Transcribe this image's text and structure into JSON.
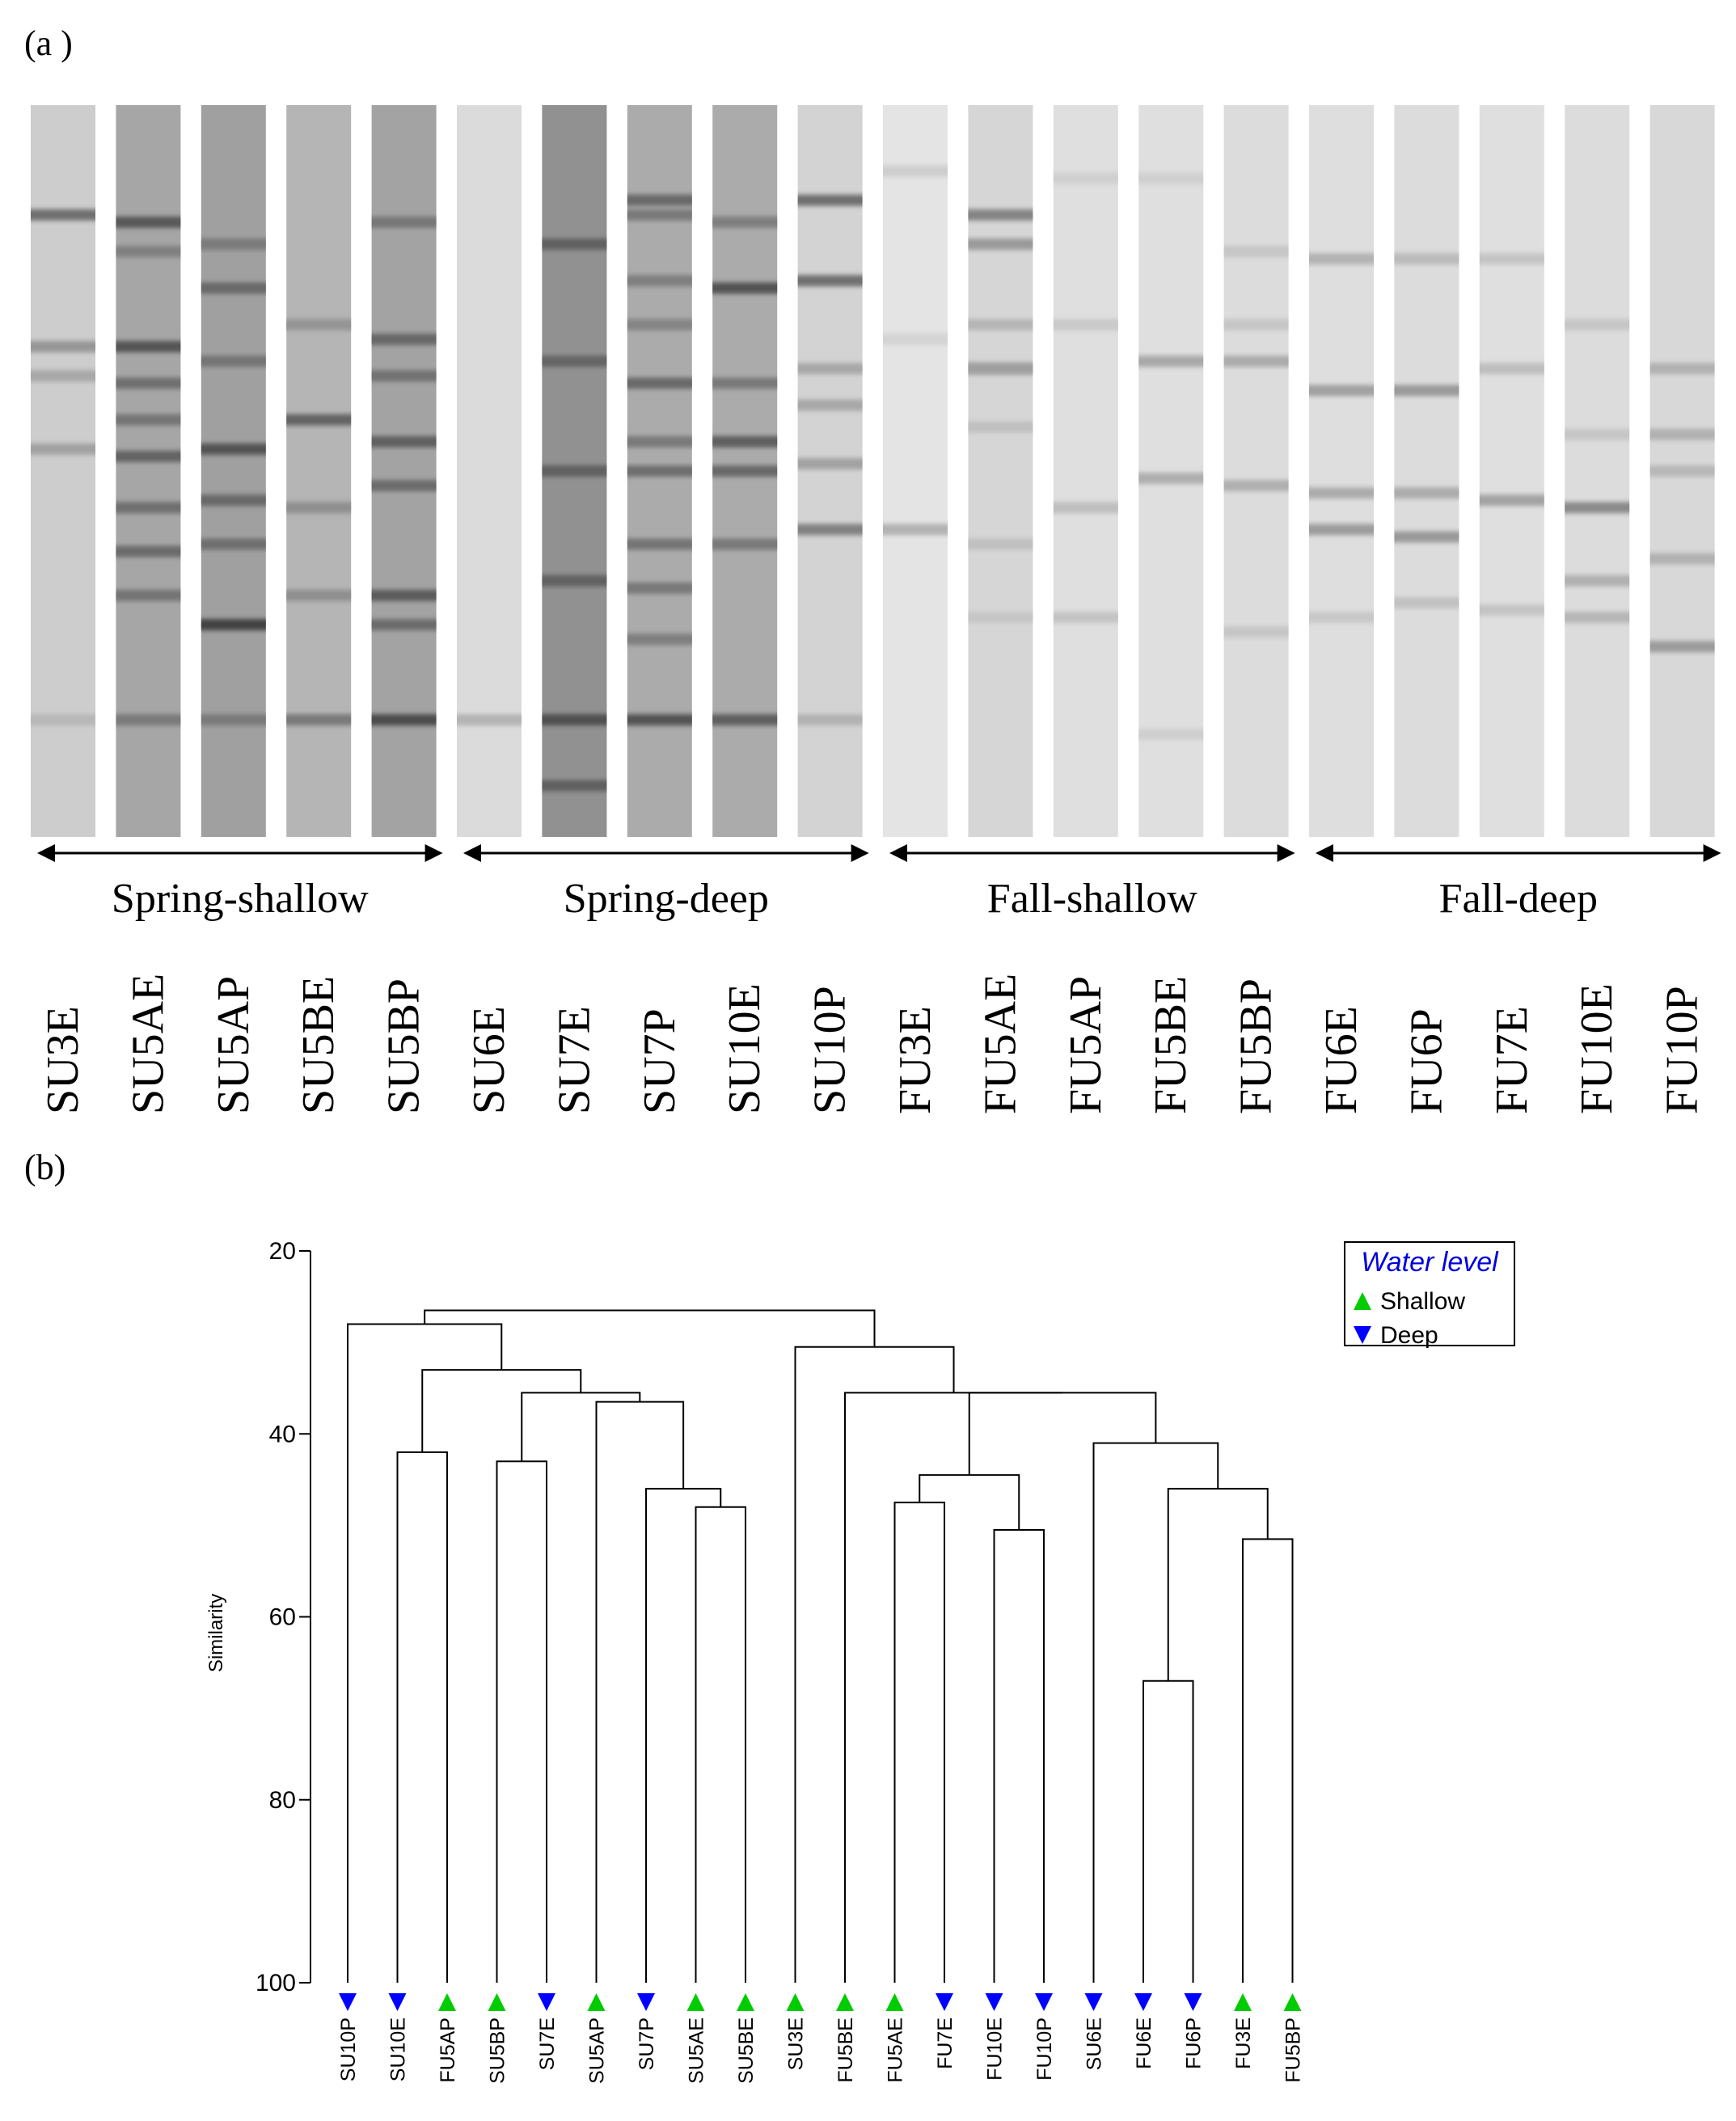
{
  "panel_a": {
    "label": "(a )",
    "lanes": [
      {
        "name": "SU3E",
        "tone": 0.22,
        "bands": [
          {
            "pos": 0.15,
            "i": 0.85
          },
          {
            "pos": 0.33,
            "i": 0.5
          },
          {
            "pos": 0.37,
            "i": 0.35
          },
          {
            "pos": 0.47,
            "i": 0.4
          },
          {
            "pos": 0.84,
            "i": 0.2
          }
        ]
      },
      {
        "name": "SU5AE",
        "tone": 0.48,
        "bands": [
          {
            "pos": 0.16,
            "i": 0.7
          },
          {
            "pos": 0.2,
            "i": 0.35
          },
          {
            "pos": 0.33,
            "i": 0.75
          },
          {
            "pos": 0.38,
            "i": 0.5
          },
          {
            "pos": 0.43,
            "i": 0.45
          },
          {
            "pos": 0.48,
            "i": 0.6
          },
          {
            "pos": 0.55,
            "i": 0.5
          },
          {
            "pos": 0.61,
            "i": 0.55
          },
          {
            "pos": 0.67,
            "i": 0.45
          },
          {
            "pos": 0.84,
            "i": 0.4
          }
        ]
      },
      {
        "name": "SU5AP",
        "tone": 0.52,
        "bands": [
          {
            "pos": 0.19,
            "i": 0.35
          },
          {
            "pos": 0.25,
            "i": 0.5
          },
          {
            "pos": 0.35,
            "i": 0.4
          },
          {
            "pos": 0.47,
            "i": 0.7
          },
          {
            "pos": 0.54,
            "i": 0.5
          },
          {
            "pos": 0.6,
            "i": 0.45
          },
          {
            "pos": 0.71,
            "i": 0.85
          },
          {
            "pos": 0.84,
            "i": 0.35
          }
        ]
      },
      {
        "name": "SU5BE",
        "tone": 0.38,
        "bands": [
          {
            "pos": 0.3,
            "i": 0.3
          },
          {
            "pos": 0.43,
            "i": 0.75
          },
          {
            "pos": 0.55,
            "i": 0.35
          },
          {
            "pos": 0.67,
            "i": 0.35
          },
          {
            "pos": 0.84,
            "i": 0.55
          }
        ]
      },
      {
        "name": "SU5BP",
        "tone": 0.5,
        "bands": [
          {
            "pos": 0.16,
            "i": 0.4
          },
          {
            "pos": 0.32,
            "i": 0.55
          },
          {
            "pos": 0.37,
            "i": 0.45
          },
          {
            "pos": 0.46,
            "i": 0.6
          },
          {
            "pos": 0.52,
            "i": 0.5
          },
          {
            "pos": 0.67,
            "i": 0.65
          },
          {
            "pos": 0.71,
            "i": 0.5
          },
          {
            "pos": 0.84,
            "i": 0.8
          }
        ]
      },
      {
        "name": "SU6E",
        "tone": 0.13,
        "bands": [
          {
            "pos": 0.84,
            "i": 0.35
          }
        ]
      },
      {
        "name": "SU7E",
        "tone": 0.62,
        "bands": [
          {
            "pos": 0.19,
            "i": 0.45
          },
          {
            "pos": 0.35,
            "i": 0.4
          },
          {
            "pos": 0.5,
            "i": 0.45
          },
          {
            "pos": 0.65,
            "i": 0.45
          },
          {
            "pos": 0.84,
            "i": 0.6
          },
          {
            "pos": 0.93,
            "i": 0.45
          }
        ]
      },
      {
        "name": "SU7P",
        "tone": 0.45,
        "bands": [
          {
            "pos": 0.13,
            "i": 0.6
          },
          {
            "pos": 0.15,
            "i": 0.45
          },
          {
            "pos": 0.24,
            "i": 0.4
          },
          {
            "pos": 0.3,
            "i": 0.35
          },
          {
            "pos": 0.38,
            "i": 0.6
          },
          {
            "pos": 0.46,
            "i": 0.45
          },
          {
            "pos": 0.5,
            "i": 0.55
          },
          {
            "pos": 0.6,
            "i": 0.5
          },
          {
            "pos": 0.66,
            "i": 0.45
          },
          {
            "pos": 0.73,
            "i": 0.4
          },
          {
            "pos": 0.84,
            "i": 0.8
          }
        ]
      },
      {
        "name": "SU10E",
        "tone": 0.45,
        "bands": [
          {
            "pos": 0.16,
            "i": 0.4
          },
          {
            "pos": 0.25,
            "i": 0.8
          },
          {
            "pos": 0.38,
            "i": 0.45
          },
          {
            "pos": 0.46,
            "i": 0.7
          },
          {
            "pos": 0.5,
            "i": 0.6
          },
          {
            "pos": 0.6,
            "i": 0.45
          },
          {
            "pos": 0.84,
            "i": 0.7
          }
        ]
      },
      {
        "name": "SU10P",
        "tone": 0.18,
        "bands": [
          {
            "pos": 0.13,
            "i": 0.9
          },
          {
            "pos": 0.24,
            "i": 0.9
          },
          {
            "pos": 0.36,
            "i": 0.4
          },
          {
            "pos": 0.41,
            "i": 0.4
          },
          {
            "pos": 0.49,
            "i": 0.45
          },
          {
            "pos": 0.58,
            "i": 0.75
          },
          {
            "pos": 0.84,
            "i": 0.3
          }
        ]
      },
      {
        "name": "FU3E",
        "tone": 0.07,
        "bands": [
          {
            "pos": 0.09,
            "i": 0.2
          },
          {
            "pos": 0.32,
            "i": 0.15
          },
          {
            "pos": 0.58,
            "i": 0.45
          }
        ]
      },
      {
        "name": "FU5AE",
        "tone": 0.16,
        "bands": [
          {
            "pos": 0.15,
            "i": 0.75
          },
          {
            "pos": 0.19,
            "i": 0.55
          },
          {
            "pos": 0.3,
            "i": 0.3
          },
          {
            "pos": 0.36,
            "i": 0.25
          },
          {
            "pos": 0.36,
            "i": 0.5
          },
          {
            "pos": 0.44,
            "i": 0.2
          },
          {
            "pos": 0.6,
            "i": 0.2
          },
          {
            "pos": 0.7,
            "i": 0.15
          }
        ]
      },
      {
        "name": "FU5AP",
        "tone": 0.1,
        "bands": [
          {
            "pos": 0.1,
            "i": 0.15
          },
          {
            "pos": 0.3,
            "i": 0.2
          },
          {
            "pos": 0.55,
            "i": 0.3
          },
          {
            "pos": 0.7,
            "i": 0.25
          }
        ]
      },
      {
        "name": "FU5BE",
        "tone": 0.1,
        "bands": [
          {
            "pos": 0.1,
            "i": 0.15
          },
          {
            "pos": 0.35,
            "i": 0.5
          },
          {
            "pos": 0.51,
            "i": 0.45
          },
          {
            "pos": 0.86,
            "i": 0.15
          }
        ]
      },
      {
        "name": "FU5BP",
        "tone": 0.12,
        "bands": [
          {
            "pos": 0.2,
            "i": 0.2
          },
          {
            "pos": 0.3,
            "i": 0.2
          },
          {
            "pos": 0.35,
            "i": 0.45
          },
          {
            "pos": 0.52,
            "i": 0.4
          },
          {
            "pos": 0.72,
            "i": 0.2
          }
        ]
      },
      {
        "name": "FU6E",
        "tone": 0.11,
        "bands": [
          {
            "pos": 0.21,
            "i": 0.4
          },
          {
            "pos": 0.39,
            "i": 0.55
          },
          {
            "pos": 0.53,
            "i": 0.45
          },
          {
            "pos": 0.58,
            "i": 0.6
          },
          {
            "pos": 0.7,
            "i": 0.2
          }
        ]
      },
      {
        "name": "FU6P",
        "tone": 0.12,
        "bands": [
          {
            "pos": 0.21,
            "i": 0.3
          },
          {
            "pos": 0.39,
            "i": 0.6
          },
          {
            "pos": 0.53,
            "i": 0.45
          },
          {
            "pos": 0.59,
            "i": 0.6
          },
          {
            "pos": 0.68,
            "i": 0.25
          }
        ]
      },
      {
        "name": "FU7E",
        "tone": 0.1,
        "bands": [
          {
            "pos": 0.21,
            "i": 0.25
          },
          {
            "pos": 0.36,
            "i": 0.3
          },
          {
            "pos": 0.54,
            "i": 0.55
          },
          {
            "pos": 0.69,
            "i": 0.25
          }
        ]
      },
      {
        "name": "FU10E",
        "tone": 0.12,
        "bands": [
          {
            "pos": 0.3,
            "i": 0.2
          },
          {
            "pos": 0.45,
            "i": 0.2
          },
          {
            "pos": 0.55,
            "i": 0.75
          },
          {
            "pos": 0.65,
            "i": 0.4
          },
          {
            "pos": 0.7,
            "i": 0.35
          }
        ]
      },
      {
        "name": "FU10P",
        "tone": 0.15,
        "bands": [
          {
            "pos": 0.36,
            "i": 0.35
          },
          {
            "pos": 0.45,
            "i": 0.35
          },
          {
            "pos": 0.5,
            "i": 0.3
          },
          {
            "pos": 0.62,
            "i": 0.35
          },
          {
            "pos": 0.74,
            "i": 0.55
          }
        ]
      }
    ],
    "groups": [
      {
        "name": "Spring-shallow",
        "first": 0,
        "last": 4
      },
      {
        "name": "Spring-deep",
        "first": 5,
        "last": 9
      },
      {
        "name": "Fall-shallow",
        "first": 10,
        "last": 14
      },
      {
        "name": "Fall-deep",
        "first": 15,
        "last": 19
      }
    ]
  },
  "panel_b": {
    "label": "(b)",
    "chart_data": {
      "type": "dendrogram",
      "ylabel": "Similarity",
      "ylim": [
        20,
        100
      ],
      "yticks": [
        20,
        40,
        60,
        80,
        100
      ],
      "leaves": [
        {
          "name": "SU10P",
          "level": "Deep"
        },
        {
          "name": "SU10E",
          "level": "Deep"
        },
        {
          "name": "FU5AP",
          "level": "Shallow"
        },
        {
          "name": "SU5BP",
          "level": "Shallow"
        },
        {
          "name": "SU7E",
          "level": "Deep"
        },
        {
          "name": "SU5AP",
          "level": "Shallow"
        },
        {
          "name": "SU7P",
          "level": "Deep"
        },
        {
          "name": "SU5AE",
          "level": "Shallow"
        },
        {
          "name": "SU5BE",
          "level": "Shallow"
        },
        {
          "name": "SU3E",
          "level": "Shallow"
        },
        {
          "name": "FU5BE",
          "level": "Shallow"
        },
        {
          "name": "FU5AE",
          "level": "Shallow"
        },
        {
          "name": "FU7E",
          "level": "Deep"
        },
        {
          "name": "FU10E",
          "level": "Deep"
        },
        {
          "name": "FU10P",
          "level": "Deep"
        },
        {
          "name": "SU6E",
          "level": "Deep"
        },
        {
          "name": "FU6E",
          "level": "Deep"
        },
        {
          "name": "FU6P",
          "level": "Deep"
        },
        {
          "name": "FU3E",
          "level": "Shallow"
        },
        {
          "name": "FU5BP",
          "level": "Shallow"
        }
      ],
      "merges": [
        {
          "id": "m1",
          "left": "SU10E",
          "right": "FU5AP",
          "similarity": 42
        },
        {
          "id": "m2",
          "left": "SU5BP",
          "right": "SU7E",
          "similarity": 43
        },
        {
          "id": "m3",
          "left": "SU5AE",
          "right": "SU5BE",
          "similarity": 48
        },
        {
          "id": "m4",
          "left": "SU7P",
          "right": "m3",
          "similarity": 46
        },
        {
          "id": "m5",
          "left": "SU5AP",
          "right": "m4",
          "similarity": 36.5
        },
        {
          "id": "m6",
          "left": "m2",
          "right": "m5",
          "similarity": 35.5
        },
        {
          "id": "m7",
          "left": "m1",
          "right": "m6",
          "similarity": 33
        },
        {
          "id": "m8",
          "left": "SU10P",
          "right": "m7",
          "similarity": 28
        },
        {
          "id": "m9",
          "left": "FU5AE",
          "right": "FU7E",
          "similarity": 47.5
        },
        {
          "id": "m10",
          "left": "FU10E",
          "right": "FU10P",
          "similarity": 50.5
        },
        {
          "id": "m11",
          "left": "m9",
          "right": "m10",
          "similarity": 44.5
        },
        {
          "id": "m12",
          "left": "FU6E",
          "right": "FU6P",
          "similarity": 67
        },
        {
          "id": "m13",
          "left": "FU3E",
          "right": "FU5BP",
          "similarity": 51.5
        },
        {
          "id": "m14",
          "left": "m12",
          "right": "m13",
          "similarity": 46
        },
        {
          "id": "m15",
          "left": "SU6E",
          "right": "m14",
          "similarity": 41
        },
        {
          "id": "m16",
          "left": "m11",
          "right": "m15",
          "similarity": 35.5
        },
        {
          "id": "m17",
          "left": "FU5BE",
          "right": "m16",
          "similarity": 35.5
        },
        {
          "id": "m18",
          "left": "SU3E",
          "right": "m17",
          "similarity": 30.5
        },
        {
          "id": "m19",
          "left": "m8",
          "right": "m18",
          "similarity": 26.5
        }
      ],
      "legend": {
        "title": "Water level",
        "placement": "top-right",
        "entries": [
          {
            "name": "Shallow",
            "marker": "triangle-up",
            "color": "#00cc00"
          },
          {
            "name": "Deep",
            "marker": "triangle-down",
            "color": "#0000ff"
          }
        ]
      }
    }
  }
}
